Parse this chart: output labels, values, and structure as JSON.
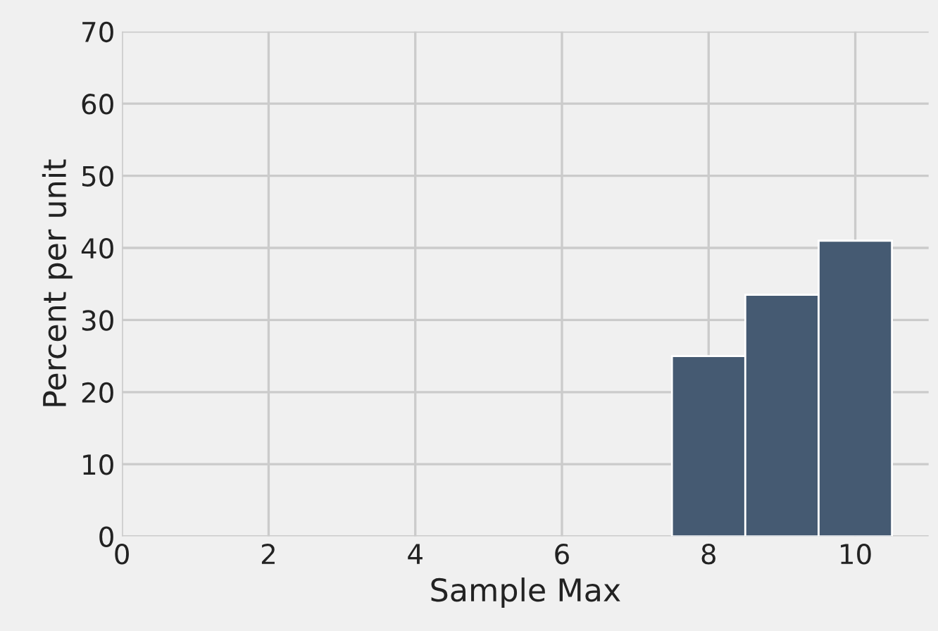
{
  "chart_data": {
    "type": "histogram",
    "xlabel": "Sample Max",
    "ylabel": "Percent per unit",
    "bins": [
      7.5,
      8.5,
      9.5,
      10.5
    ],
    "values": [
      25,
      33.5,
      41
    ],
    "color": "#455a72",
    "xlim": [
      0,
      11
    ],
    "xticks": [
      0,
      2,
      4,
      6,
      8,
      10
    ],
    "ylim": [
      0,
      70
    ],
    "yticks": [
      0,
      10,
      20,
      30,
      40,
      50,
      60,
      70
    ],
    "grid": true
  }
}
